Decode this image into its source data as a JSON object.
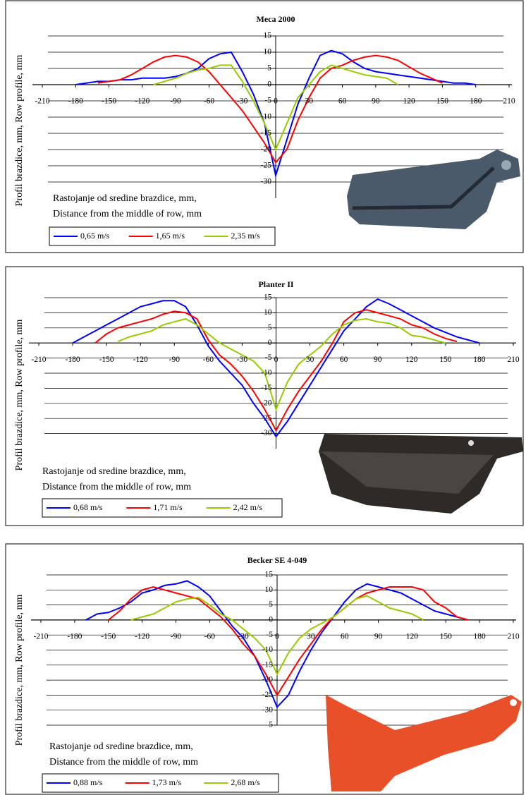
{
  "chart_data": [
    {
      "type": "line",
      "title": "Meca 2000",
      "y_label": "Profil brazdice, mm, Row profile, mm",
      "annotation": [
        "Rastojanje od sredine brazdice, mm,",
        "Distance from the middle of row, mm"
      ],
      "x": [
        -180,
        -170,
        -160,
        -150,
        -140,
        -130,
        -120,
        -110,
        -100,
        -90,
        -80,
        -70,
        -60,
        -50,
        -40,
        -30,
        -20,
        -10,
        0,
        10,
        20,
        30,
        40,
        50,
        60,
        70,
        80,
        90,
        100,
        110,
        120,
        130,
        140,
        150,
        160,
        170,
        180
      ],
      "series": [
        {
          "name": "0,65 m/s",
          "color": "#0000ff",
          "values": [
            0,
            0.5,
            1,
            1,
            1.5,
            1.5,
            2,
            2,
            2,
            2.5,
            3.5,
            5,
            8,
            9.5,
            10,
            4,
            -3,
            -12,
            -28,
            -17,
            -6,
            2,
            9,
            10.5,
            9.5,
            7,
            5,
            4,
            3.5,
            3,
            2.5,
            2,
            1.5,
            1,
            0.5,
            0.5,
            0
          ]
        },
        {
          "name": "1,65 m/s",
          "color": "#ff0000",
          "values": [
            null,
            null,
            0.5,
            1,
            1.5,
            3,
            5,
            7,
            8.5,
            9,
            8.5,
            7,
            4,
            0,
            -4,
            -8,
            -13,
            -18,
            -24,
            -20,
            -11,
            -4,
            2,
            5,
            6,
            7.5,
            8.5,
            9,
            8.5,
            7.5,
            5.5,
            3.5,
            2,
            0.5,
            null,
            null,
            null
          ]
        },
        {
          "name": "2,35 m/s",
          "color": "#99cc00",
          "values": [
            null,
            null,
            null,
            null,
            null,
            null,
            null,
            0,
            1,
            2,
            3.5,
            4.5,
            5,
            6,
            6,
            1,
            -5,
            -12,
            -20,
            -12,
            -4,
            0,
            4,
            6,
            5,
            4,
            3,
            2.5,
            2,
            0,
            null,
            null,
            null,
            null,
            null,
            null,
            null
          ]
        }
      ],
      "xlim": [
        -210,
        210
      ],
      "xticks": [
        -210,
        -180,
        -150,
        -120,
        -90,
        -60,
        -30,
        0,
        30,
        60,
        90,
        120,
        150,
        180,
        210
      ],
      "ylim": [
        -35,
        15
      ],
      "yticks": [
        15,
        10,
        5,
        0,
        -5,
        -10,
        -15,
        -20,
        -25,
        -30
      ],
      "grid": true
    },
    {
      "type": "line",
      "title": "Planter II",
      "y_label": "Profil brazdice, mm, Row profile, mm",
      "annotation": [
        "Rastojanje od sredine brazdice, mm,",
        "Distance from the middle of row, mm"
      ],
      "x": [
        -180,
        -170,
        -160,
        -150,
        -140,
        -130,
        -120,
        -110,
        -100,
        -90,
        -80,
        -70,
        -60,
        -50,
        -40,
        -30,
        -20,
        -10,
        0,
        10,
        20,
        30,
        40,
        50,
        60,
        70,
        80,
        90,
        100,
        110,
        120,
        130,
        140,
        150,
        160,
        170,
        180
      ],
      "series": [
        {
          "name": "0,68 m/s",
          "color": "#0000ff",
          "values": [
            0,
            2,
            4,
            6,
            8,
            10,
            12,
            13,
            14,
            14,
            12,
            6,
            -1,
            -6,
            -10,
            -14,
            -20,
            -25,
            -31,
            -26,
            -20,
            -14,
            -8,
            -2,
            4,
            8,
            12,
            14.5,
            13,
            11,
            9,
            7,
            5,
            3.5,
            2,
            1,
            0
          ]
        },
        {
          "name": "1,71 m/s",
          "color": "#ff0000",
          "values": [
            null,
            null,
            0,
            3,
            5,
            6,
            7,
            8,
            9.5,
            10.5,
            10,
            8,
            1,
            -4,
            -7,
            -11,
            -16,
            -22,
            -29,
            -22,
            -16,
            -11,
            -6,
            0,
            7,
            10,
            11,
            10,
            9,
            8,
            6,
            5,
            3,
            1.5,
            0.5,
            null,
            null
          ]
        },
        {
          "name": "2,42 m/s",
          "color": "#99cc00",
          "values": [
            null,
            null,
            null,
            null,
            0.5,
            2,
            3,
            4,
            6,
            7,
            8,
            6,
            3,
            0,
            -2,
            -4,
            -6,
            -10,
            -22,
            -13,
            -7,
            -4,
            -1,
            3,
            6,
            7.5,
            8,
            7,
            6.5,
            5,
            2.5,
            2,
            1,
            0,
            null,
            null,
            null
          ]
        }
      ],
      "xlim": [
        -210,
        210
      ],
      "xticks": [
        -210,
        -180,
        -150,
        -120,
        -90,
        -60,
        -30,
        0,
        30,
        60,
        90,
        120,
        150,
        180,
        210
      ],
      "ylim": [
        -35,
        15
      ],
      "yticks": [
        15,
        10,
        5,
        0,
        -5,
        -10,
        -15,
        -20,
        -25,
        -30
      ],
      "grid": true
    },
    {
      "type": "line",
      "title": "Becker SE 4-049",
      "y_label": "Profil brazdice, mm, Row profile, mm",
      "annotation": [
        "Rastojanje od sredine brazdice, mm,",
        "Distance from the middle of row, mm"
      ],
      "x": [
        -180,
        -170,
        -160,
        -150,
        -140,
        -130,
        -120,
        -110,
        -100,
        -90,
        -80,
        -70,
        -60,
        -50,
        -40,
        -30,
        -20,
        -10,
        0,
        10,
        20,
        30,
        40,
        50,
        60,
        70,
        80,
        90,
        100,
        110,
        120,
        130,
        140,
        150,
        160,
        170,
        180
      ],
      "series": [
        {
          "name": "0,88 m/s",
          "color": "#0000ff",
          "values": [
            null,
            0,
            2,
            2.5,
            4,
            6,
            9,
            10,
            11.5,
            12,
            13,
            11,
            8,
            3,
            -2,
            -6,
            -12,
            -20,
            -29,
            -25,
            -17,
            -10,
            -4,
            1,
            6,
            10,
            12,
            11,
            10,
            9,
            7,
            5,
            3,
            2,
            1,
            0,
            null
          ]
        },
        {
          "name": "1,73 m/s",
          "color": "#ff0000",
          "values": [
            null,
            null,
            null,
            0,
            3,
            7,
            10,
            11,
            10,
            9,
            8,
            7,
            4,
            1,
            -3,
            -8,
            -12,
            -18,
            -25,
            -19,
            -13,
            -8,
            -3,
            1,
            4,
            7,
            9,
            10,
            11,
            11,
            11,
            10,
            6,
            4,
            1,
            0,
            null
          ]
        },
        {
          "name": "2,68 m/s",
          "color": "#99cc00",
          "values": [
            null,
            null,
            null,
            null,
            null,
            0,
            1,
            2,
            4,
            6,
            7,
            7.5,
            5,
            2,
            0,
            -3,
            -6,
            -10,
            -18,
            -11,
            -6,
            -3,
            -1,
            1,
            4,
            7,
            8,
            6,
            4,
            3,
            2,
            0,
            null,
            null,
            null,
            null,
            null
          ]
        }
      ],
      "xlim": [
        -210,
        210
      ],
      "xticks": [
        -210,
        -180,
        -150,
        -120,
        -90,
        -60,
        -30,
        0,
        30,
        60,
        90,
        120,
        150,
        180,
        210
      ],
      "ylim": [
        -35,
        15
      ],
      "yticks": [
        15,
        10,
        5,
        0,
        -5,
        -10,
        -15,
        -20,
        -25,
        -30,
        {
          "value": -35,
          "label": "5"
        }
      ],
      "grid": true
    }
  ]
}
